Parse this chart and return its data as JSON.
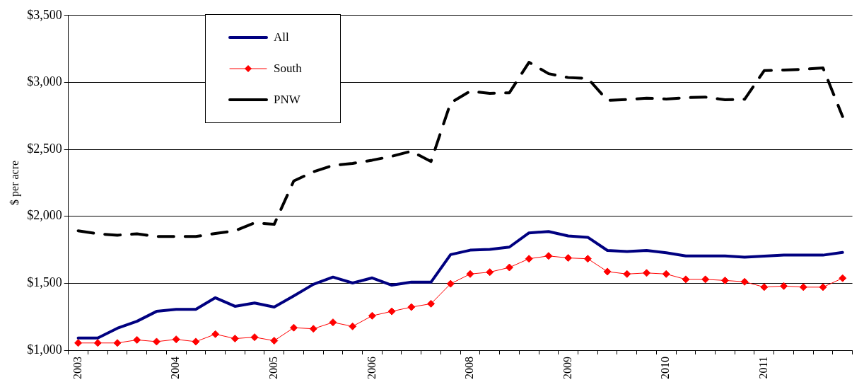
{
  "chart_data": {
    "type": "line",
    "ylabel": "$ per acre",
    "categories": [
      "2003",
      null,
      null,
      null,
      null,
      "2004",
      null,
      null,
      null,
      null,
      "2005",
      null,
      null,
      null,
      null,
      "2006",
      null,
      null,
      null,
      null,
      "2008",
      null,
      null,
      null,
      null,
      "2009",
      null,
      null,
      null,
      null,
      "2010",
      null,
      null,
      null,
      null,
      "2011",
      null,
      null,
      null,
      null
    ],
    "series": [
      {
        "name": "All",
        "color": "#000080",
        "marker": "none",
        "line_style": "solid",
        "values": [
          1091,
          1091,
          1164,
          1216,
          1290,
          1305,
          1305,
          1392,
          1328,
          1353,
          1322,
          1405,
          1492,
          1546,
          1502,
          1540,
          1486,
          1508,
          1508,
          1714,
          1747,
          1753,
          1770,
          1876,
          1886,
          1853,
          1843,
          1745,
          1737,
          1745,
          1728,
          1704,
          1704,
          1704,
          1695,
          1703,
          1710,
          1710,
          1710,
          1730
        ]
      },
      {
        "name": "South",
        "color": "#ff0000",
        "marker": "diamond",
        "line_style": "solid",
        "values": [
          1054,
          1054,
          1054,
          1077,
          1064,
          1081,
          1064,
          1120,
          1087,
          1097,
          1071,
          1168,
          1160,
          1208,
          1178,
          1257,
          1290,
          1322,
          1347,
          1496,
          1569,
          1583,
          1618,
          1683,
          1704,
          1689,
          1683,
          1587,
          1569,
          1577,
          1569,
          1529,
          1529,
          1521,
          1511,
          1471,
          1479,
          1471,
          1471,
          1538
        ]
      },
      {
        "name": "PNW",
        "color": "#000000",
        "marker": "none",
        "line_style": "dashed",
        "values": [
          1892,
          1869,
          1859,
          1869,
          1849,
          1849,
          1849,
          1872,
          1892,
          1951,
          1940,
          2264,
          2332,
          2380,
          2395,
          2419,
          2448,
          2486,
          2409,
          2847,
          2934,
          2918,
          2922,
          3150,
          3065,
          3036,
          3030,
          2866,
          2872,
          2882,
          2876,
          2886,
          2890,
          2870,
          2874,
          3088,
          3092,
          3098,
          3108,
          2745
        ]
      }
    ],
    "ylim": [
      1000,
      3500
    ],
    "yticks": [
      {
        "value": 1000,
        "label": "$1,000"
      },
      {
        "value": 1500,
        "label": "$1,500"
      },
      {
        "value": 2000,
        "label": "$2,000"
      },
      {
        "value": 2500,
        "label": "$2,500"
      },
      {
        "value": 3000,
        "label": "$3,000"
      },
      {
        "value": 3500,
        "label": "$3,500"
      }
    ],
    "grid": "y",
    "legend": "top left"
  }
}
